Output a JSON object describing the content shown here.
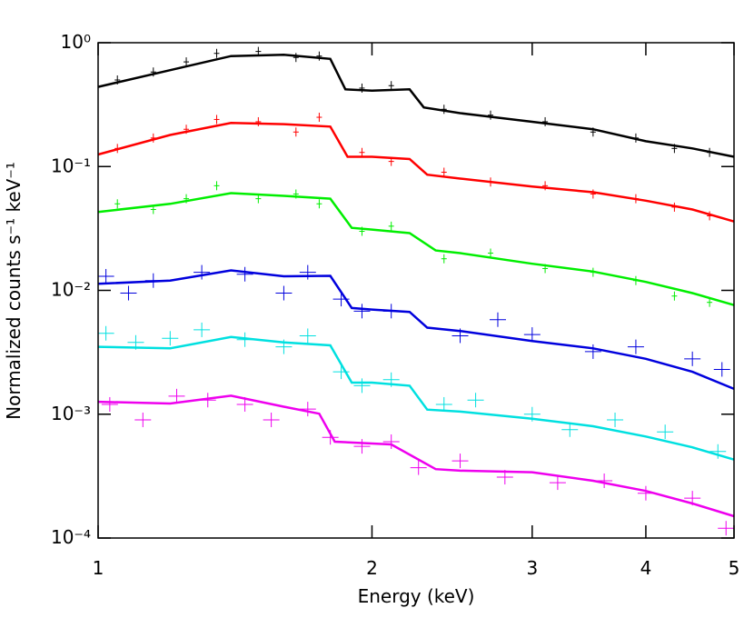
{
  "chart_data": {
    "type": "line",
    "x_label": "Energy (keV)",
    "y_label": "Normalized counts s⁻¹ keV⁻¹",
    "log_x": true,
    "log_y": true,
    "xlim": [
      1,
      5
    ],
    "ylim": [
      0.0001,
      1
    ],
    "xticks": [
      1,
      2,
      3,
      4,
      5
    ],
    "yticks": [
      {
        "value": 1,
        "label": "10⁰"
      },
      {
        "value": 0.1,
        "label": "10⁻¹"
      },
      {
        "value": 0.01,
        "label": "10⁻²"
      },
      {
        "value": 0.001,
        "label": "10⁻³"
      },
      {
        "value": 0.0001,
        "label": "10⁻⁴"
      }
    ],
    "series": [
      {
        "color": "#000000",
        "x": [
          1,
          1.2,
          1.4,
          1.6,
          1.8,
          1.87,
          2.0,
          2.2,
          2.28,
          2.5,
          3,
          3.5,
          4,
          4.5,
          5
        ],
        "values": [
          0.44,
          0.6,
          0.78,
          0.8,
          0.74,
          0.42,
          0.41,
          0.42,
          0.3,
          0.27,
          0.23,
          0.2,
          0.16,
          0.14,
          0.12
        ]
      },
      {
        "color": "#ff0000",
        "x": [
          1,
          1.2,
          1.4,
          1.6,
          1.8,
          1.88,
          2.0,
          2.2,
          2.3,
          2.5,
          3,
          3.5,
          4,
          4.5,
          5
        ],
        "values": [
          0.125,
          0.18,
          0.225,
          0.22,
          0.21,
          0.12,
          0.12,
          0.115,
          0.086,
          0.08,
          0.069,
          0.062,
          0.053,
          0.045,
          0.036
        ]
      },
      {
        "color": "#00ee00",
        "x": [
          1,
          1.2,
          1.4,
          1.6,
          1.8,
          1.9,
          2.0,
          2.2,
          2.35,
          2.5,
          3,
          3.5,
          4,
          4.5,
          5
        ],
        "values": [
          0.043,
          0.05,
          0.061,
          0.058,
          0.055,
          0.032,
          0.031,
          0.029,
          0.021,
          0.02,
          0.0164,
          0.0142,
          0.0117,
          0.0095,
          0.0076
        ]
      },
      {
        "color": "#0000dd",
        "x": [
          1,
          1.2,
          1.4,
          1.6,
          1.8,
          1.9,
          2.0,
          2.2,
          2.3,
          2.5,
          3,
          3.5,
          4,
          4.5,
          5
        ],
        "values": [
          0.0113,
          0.012,
          0.0145,
          0.013,
          0.0131,
          0.0072,
          0.007,
          0.0067,
          0.005,
          0.0047,
          0.0039,
          0.0034,
          0.0028,
          0.0022,
          0.0016
        ]
      },
      {
        "color": "#00e0e0",
        "x": [
          1,
          1.2,
          1.4,
          1.6,
          1.8,
          1.9,
          2.0,
          2.2,
          2.3,
          2.5,
          3,
          3.5,
          4,
          4.5,
          5
        ],
        "values": [
          0.0035,
          0.0034,
          0.0042,
          0.0038,
          0.0036,
          0.0018,
          0.0018,
          0.0017,
          0.00109,
          0.00105,
          0.00092,
          0.0008,
          0.00066,
          0.00054,
          0.00043
        ]
      },
      {
        "color": "#ee00ee",
        "x": [
          1,
          1.2,
          1.4,
          1.6,
          1.75,
          1.82,
          2.0,
          2.1,
          2.35,
          2.5,
          3,
          3.5,
          4,
          4.5,
          5
        ],
        "values": [
          0.00126,
          0.00122,
          0.00141,
          0.00115,
          0.00101,
          0.0006,
          0.00058,
          0.00057,
          0.00036,
          0.00035,
          0.00034,
          0.00029,
          0.00024,
          0.00019,
          0.00015
        ]
      }
    ],
    "points": [
      {
        "color": "#000000",
        "x": [
          1.05,
          1.15,
          1.25,
          1.35,
          1.5,
          1.65,
          1.75,
          1.95,
          2.1,
          2.4,
          2.7,
          3.1,
          3.5,
          3.9,
          4.3,
          4.7
        ],
        "values": [
          0.5,
          0.58,
          0.7,
          0.82,
          0.85,
          0.76,
          0.78,
          0.43,
          0.45,
          0.29,
          0.26,
          0.23,
          0.19,
          0.17,
          0.14,
          0.13
        ]
      },
      {
        "color": "#ff0000",
        "x": [
          1.05,
          1.15,
          1.25,
          1.35,
          1.5,
          1.65,
          1.75,
          1.95,
          2.1,
          2.4,
          2.7,
          3.1,
          3.5,
          3.9,
          4.3,
          4.7
        ],
        "values": [
          0.14,
          0.17,
          0.2,
          0.24,
          0.23,
          0.19,
          0.25,
          0.13,
          0.11,
          0.09,
          0.075,
          0.07,
          0.06,
          0.055,
          0.047,
          0.04
        ]
      },
      {
        "color": "#00ee00",
        "x": [
          1.05,
          1.15,
          1.25,
          1.35,
          1.5,
          1.65,
          1.75,
          1.95,
          2.1,
          2.4,
          2.7,
          3.1,
          3.5,
          3.9,
          4.3,
          4.7
        ],
        "values": [
          0.05,
          0.045,
          0.055,
          0.07,
          0.055,
          0.06,
          0.05,
          0.03,
          0.033,
          0.018,
          0.02,
          0.015,
          0.014,
          0.012,
          0.009,
          0.008
        ]
      },
      {
        "color": "#0000dd",
        "x": [
          1.02,
          1.08,
          1.15,
          1.3,
          1.45,
          1.6,
          1.7,
          1.85,
          1.95,
          2.1,
          2.5,
          2.75,
          3.0,
          3.5,
          3.9,
          4.5,
          4.85
        ],
        "values": [
          0.013,
          0.0095,
          0.012,
          0.014,
          0.0135,
          0.0095,
          0.014,
          0.0085,
          0.0068,
          0.0068,
          0.0043,
          0.0058,
          0.0044,
          0.0032,
          0.0035,
          0.0028,
          0.0023
        ]
      },
      {
        "color": "#00e0e0",
        "x": [
          1.02,
          1.1,
          1.2,
          1.3,
          1.45,
          1.6,
          1.7,
          1.85,
          1.95,
          2.1,
          2.4,
          2.6,
          3.0,
          3.3,
          3.7,
          4.2,
          4.8
        ],
        "values": [
          0.0045,
          0.0038,
          0.0041,
          0.0048,
          0.004,
          0.0035,
          0.0043,
          0.0022,
          0.0017,
          0.0019,
          0.0012,
          0.0013,
          0.001,
          0.00075,
          0.0009,
          0.00072,
          0.0005
        ]
      },
      {
        "color": "#ee00ee",
        "x": [
          1.03,
          1.12,
          1.22,
          1.32,
          1.45,
          1.55,
          1.7,
          1.8,
          1.95,
          2.1,
          2.25,
          2.5,
          2.8,
          3.2,
          3.6,
          4.0,
          4.5,
          4.9
        ],
        "values": [
          0.0012,
          0.0009,
          0.0014,
          0.0013,
          0.0012,
          0.0009,
          0.0011,
          0.00065,
          0.00055,
          0.0006,
          0.00037,
          0.00042,
          0.00031,
          0.00028,
          0.00029,
          0.00023,
          0.00021,
          0.00012
        ]
      }
    ]
  }
}
